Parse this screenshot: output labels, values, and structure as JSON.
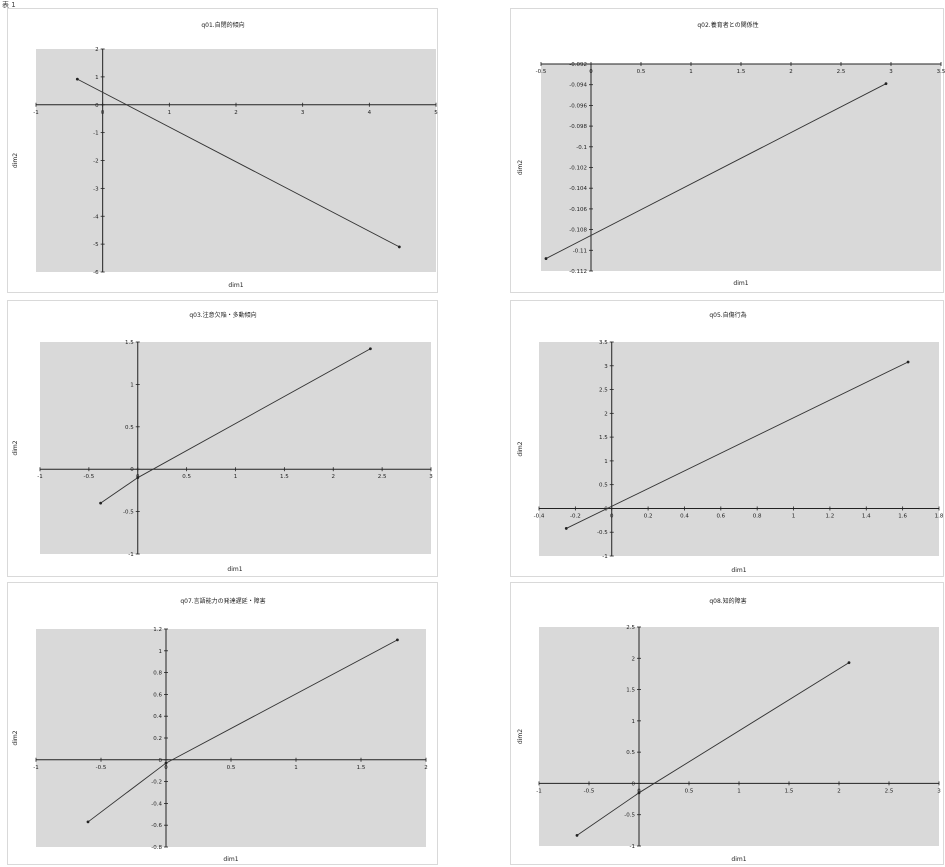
{
  "page_label": "表 1",
  "chart_data": [
    {
      "type": "line",
      "title": "q01.自閉的傾向",
      "xlabel": "dim1",
      "ylabel": "dim2",
      "xlim": [
        -1,
        5
      ],
      "ylim": [
        -6,
        2
      ],
      "xticks": [
        -1,
        0,
        1,
        2,
        3,
        4,
        5
      ],
      "yticks": [
        -6,
        -5,
        -4,
        -3,
        -2,
        -1,
        0,
        1,
        2
      ],
      "xtick_labels": [
        "-1",
        "0",
        "1",
        "2",
        "3",
        "4",
        "5"
      ],
      "ytick_labels": [
        "-6",
        "-5",
        "-4",
        "-3",
        "-2",
        "-1",
        "0",
        "1",
        "2"
      ],
      "points": [
        {
          "x": -0.38,
          "y": 0.92
        },
        {
          "x": 4.45,
          "y": -5.1
        }
      ]
    },
    {
      "type": "line",
      "title": "q02.養育者との関係性",
      "xlabel": "dim1",
      "ylabel": "dim2",
      "xlim": [
        -0.5,
        3.5
      ],
      "ylim": [
        -0.112,
        -0.092
      ],
      "xticks": [
        -0.5,
        0,
        0.5,
        1,
        1.5,
        2,
        2.5,
        3,
        3.5
      ],
      "yticks": [
        -0.092,
        -0.094,
        -0.096,
        -0.098,
        -0.1,
        -0.102,
        -0.104,
        -0.106,
        -0.108,
        -0.11,
        -0.112
      ],
      "xtick_labels": [
        "-0.5",
        "0",
        "0.5",
        "1",
        "1.5",
        "2",
        "2.5",
        "3",
        "3.5"
      ],
      "ytick_labels": [
        "-0.092",
        "-0.094",
        "-0.096",
        "-0.098",
        "-0.1",
        "-0.102",
        "-0.104",
        "-0.106",
        "-0.108",
        "-0.11",
        "-0.112"
      ],
      "points": [
        {
          "x": -0.45,
          "y": -0.1108
        },
        {
          "x": 2.95,
          "y": -0.0939
        }
      ]
    },
    {
      "type": "line",
      "title": "q03.注意欠陥・多動傾向",
      "xlabel": "dim1",
      "ylabel": "dim2",
      "xlim": [
        -1,
        3
      ],
      "ylim": [
        -1,
        1.5
      ],
      "xticks": [
        -1,
        -0.5,
        0,
        0.5,
        1,
        1.5,
        2,
        2.5,
        3
      ],
      "yticks": [
        -1,
        -0.5,
        0,
        0.5,
        1,
        1.5
      ],
      "xtick_labels": [
        "-1",
        "-0.5",
        "0",
        "0.5",
        "1",
        "1.5",
        "2",
        "2.5",
        "3"
      ],
      "ytick_labels": [
        "-1",
        "-0.5",
        "0",
        "0.5",
        "1",
        "1.5"
      ],
      "points": [
        {
          "x": -0.38,
          "y": -0.4
        },
        {
          "x": 0,
          "y": -0.1
        },
        {
          "x": 2.38,
          "y": 1.42
        }
      ]
    },
    {
      "type": "line",
      "title": "q05.自傷行為",
      "xlabel": "dim1",
      "ylabel": "dim2",
      "xlim": [
        -0.4,
        1.8
      ],
      "ylim": [
        -1,
        3.5
      ],
      "xticks": [
        -0.4,
        -0.2,
        0,
        0.2,
        0.4,
        0.6,
        0.8,
        1,
        1.2,
        1.4,
        1.6,
        1.8
      ],
      "yticks": [
        -1,
        -0.5,
        0,
        0.5,
        1,
        1.5,
        2,
        2.5,
        3,
        3.5
      ],
      "xtick_labels": [
        "-0.4",
        "-0.2",
        "0",
        "0.2",
        "0.4",
        "0.6",
        "0.8",
        "1",
        "1.2",
        "1.4",
        "1.6",
        "1.8"
      ],
      "ytick_labels": [
        "-1",
        "-0.5",
        "0",
        "0.5",
        "1",
        "1.5",
        "2",
        "2.5",
        "3",
        "3.5"
      ],
      "points": [
        {
          "x": -0.25,
          "y": -0.42
        },
        {
          "x": 1.63,
          "y": 3.08
        }
      ]
    },
    {
      "type": "line",
      "title": "q07.言語能力の発達遅延・障害",
      "xlabel": "dim1",
      "ylabel": "dim2",
      "xlim": [
        -1,
        2
      ],
      "ylim": [
        -0.8,
        1.2
      ],
      "xticks": [
        -1,
        -0.5,
        0,
        0.5,
        1,
        1.5,
        2
      ],
      "yticks": [
        -0.8,
        -0.6,
        -0.4,
        -0.2,
        0,
        0.2,
        0.4,
        0.6,
        0.8,
        1,
        1.2
      ],
      "xtick_labels": [
        "-1",
        "-0.5",
        "0",
        "0.5",
        "1",
        "1.5",
        "2"
      ],
      "ytick_labels": [
        "-0.8",
        "-0.6",
        "-0.4",
        "-0.2",
        "0",
        "0.2",
        "0.4",
        "0.6",
        "0.8",
        "1",
        "1.2"
      ],
      "points": [
        {
          "x": -0.6,
          "y": -0.57
        },
        {
          "x": 0,
          "y": -0.03
        },
        {
          "x": 1.78,
          "y": 1.1
        }
      ]
    },
    {
      "type": "line",
      "title": "q08.知的障害",
      "xlabel": "dim1",
      "ylabel": "dim2",
      "xlim": [
        -1,
        3
      ],
      "ylim": [
        -1,
        2.5
      ],
      "xticks": [
        -1,
        -0.5,
        0,
        0.5,
        1,
        1.5,
        2,
        2.5,
        3
      ],
      "yticks": [
        -1,
        -0.5,
        0,
        0.5,
        1,
        1.5,
        2,
        2.5
      ],
      "xtick_labels": [
        "-1",
        "-0.5",
        "0",
        "0.5",
        "1",
        "1.5",
        "2",
        "2.5",
        "3"
      ],
      "ytick_labels": [
        "-1",
        "-0.5",
        "0",
        "0.5",
        "1",
        "1.5",
        "2",
        "2.5"
      ],
      "points": [
        {
          "x": -0.62,
          "y": -0.83
        },
        {
          "x": 0,
          "y": -0.15
        },
        {
          "x": 2.1,
          "y": 1.93
        }
      ]
    }
  ]
}
